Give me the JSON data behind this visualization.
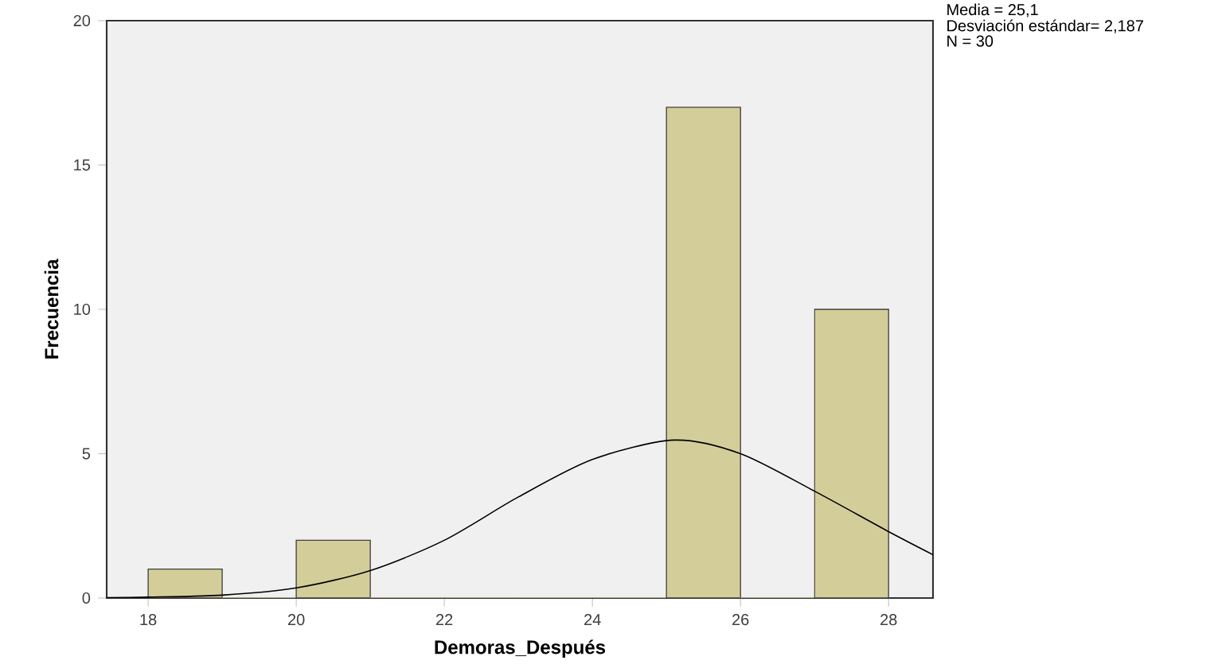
{
  "chart_data": {
    "type": "histogram",
    "xlabel": "Demoras_Después",
    "ylabel": "Frecuencia",
    "bins": [
      18,
      19,
      20,
      21,
      22,
      23,
      24,
      25,
      26,
      27,
      28
    ],
    "values": [
      1,
      0,
      2,
      0,
      0,
      0,
      0,
      17,
      0,
      10
    ],
    "color": "#d3ce99",
    "series": [
      {
        "type": "line",
        "color": "#000000",
        "x": [
          17.44,
          18,
          19,
          20,
          21,
          22,
          23,
          24,
          25.1,
          26,
          27,
          28,
          28.6
        ],
        "values": [
          0.01,
          0.03,
          0.1,
          0.35,
          0.95,
          2.0,
          3.5,
          4.8,
          5.47,
          5.0,
          3.7,
          2.3,
          1.5
        ]
      }
    ],
    "xlim": [
      17.44,
      28.6
    ],
    "ylim": [
      0,
      20
    ],
    "xticks": [
      18,
      20,
      22,
      24,
      26,
      28
    ],
    "yticks": [
      0,
      5,
      10,
      15,
      20
    ],
    "annotations": [
      "Media = 25,1",
      "Desviación estándar= 2,187",
      "N = 30"
    ],
    "grid": false
  }
}
